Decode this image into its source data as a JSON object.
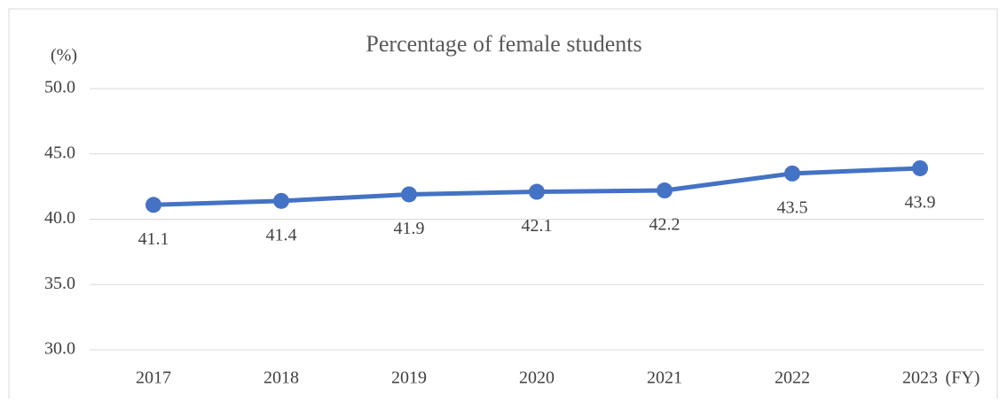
{
  "chart_data": {
    "type": "line",
    "title": "Percentage of female students",
    "y_label": "(%)",
    "x_label": "(FY)",
    "categories": [
      "2017",
      "2018",
      "2019",
      "2020",
      "2021",
      "2022",
      "2023"
    ],
    "series": [
      {
        "name": "Percentage of female students",
        "color": "#4472c4",
        "values": [
          41.1,
          41.4,
          41.9,
          42.1,
          42.2,
          43.5,
          43.9
        ]
      }
    ],
    "ylim": [
      30,
      50
    ],
    "yticks": [
      {
        "value": 30,
        "label": "30.0"
      },
      {
        "value": 35,
        "label": "35.0"
      },
      {
        "value": 40,
        "label": "40.0"
      },
      {
        "value": 45,
        "label": "45.0"
      },
      {
        "value": 50,
        "label": "50.0"
      }
    ],
    "grid": true,
    "data_labels": true
  }
}
